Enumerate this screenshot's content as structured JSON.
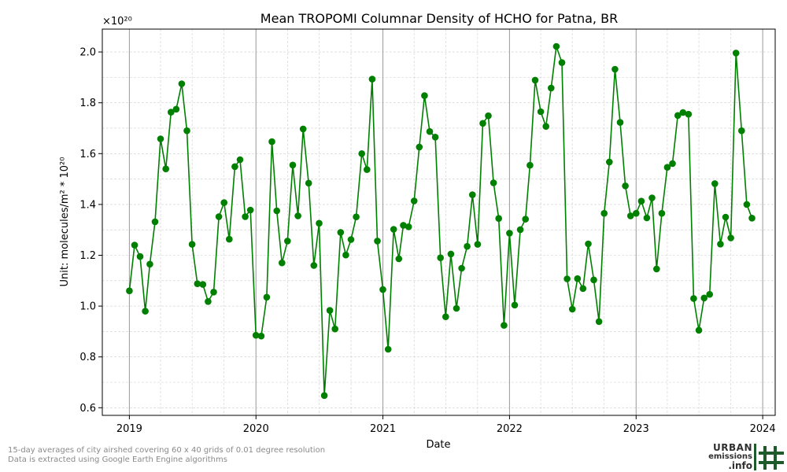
{
  "chart_data": {
    "type": "line",
    "title": "Mean TROPOMI Columnar Density of HCHO for Patna, BR",
    "xlabel": "Date",
    "ylabel": "Unit: molecules/m² * 10²⁰",
    "y_multiplier_label": "×10²⁰",
    "xlim": [
      "2018-10-15",
      "2024-02-06"
    ],
    "ylim": [
      0.57,
      2.09
    ],
    "x_ticks": [
      "2019",
      "2020",
      "2021",
      "2022",
      "2023",
      "2024"
    ],
    "y_ticks": [
      0.6,
      0.8,
      1.0,
      1.2,
      1.4,
      1.6,
      1.8,
      2.0
    ],
    "grid": true,
    "series_color": "#008000",
    "series": [
      {
        "x": [
          "2019-01-01",
          "2019-01-16",
          "2019-02-01",
          "2019-02-16",
          "2019-03-01",
          "2019-03-16",
          "2019-04-01",
          "2019-04-16",
          "2019-05-01",
          "2019-05-16",
          "2019-06-01",
          "2019-06-16",
          "2019-07-01",
          "2019-07-16",
          "2019-08-01",
          "2019-08-16",
          "2019-09-01",
          "2019-09-16",
          "2019-10-01",
          "2019-10-16",
          "2019-11-01",
          "2019-11-16",
          "2019-12-01",
          "2019-12-16",
          "2020-01-01",
          "2020-01-16",
          "2020-02-01",
          "2020-02-16",
          "2020-03-01",
          "2020-03-16",
          "2020-04-01",
          "2020-04-16",
          "2020-05-01",
          "2020-05-16",
          "2020-06-01",
          "2020-06-16",
          "2020-07-01",
          "2020-07-16",
          "2020-08-01",
          "2020-08-16",
          "2020-09-01",
          "2020-09-16",
          "2020-10-01",
          "2020-10-16",
          "2020-11-01",
          "2020-11-16",
          "2020-12-01",
          "2020-12-16",
          "2021-01-01",
          "2021-01-16",
          "2021-02-01",
          "2021-02-16",
          "2021-03-01",
          "2021-03-16",
          "2021-04-01",
          "2021-04-16",
          "2021-05-01",
          "2021-05-16",
          "2021-06-01",
          "2021-06-16",
          "2021-07-01",
          "2021-07-16",
          "2021-08-01",
          "2021-08-16",
          "2021-09-01",
          "2021-09-16",
          "2021-10-01",
          "2021-10-16",
          "2021-11-01",
          "2021-11-16",
          "2021-12-01",
          "2021-12-16",
          "2022-01-01",
          "2022-01-16",
          "2022-02-01",
          "2022-02-16",
          "2022-03-01",
          "2022-03-16",
          "2022-04-01",
          "2022-04-16",
          "2022-05-01",
          "2022-05-16",
          "2022-06-01",
          "2022-06-16",
          "2022-07-01",
          "2022-07-16",
          "2022-08-01",
          "2022-08-16",
          "2022-09-01",
          "2022-09-16",
          "2022-10-01",
          "2022-10-16",
          "2022-11-01",
          "2022-11-16",
          "2022-12-01",
          "2022-12-16",
          "2023-01-01",
          "2023-01-16",
          "2023-02-01",
          "2023-02-16",
          "2023-03-01",
          "2023-03-16",
          "2023-04-01",
          "2023-04-16",
          "2023-05-01",
          "2023-05-16",
          "2023-06-01",
          "2023-06-16",
          "2023-07-01",
          "2023-07-16",
          "2023-08-01",
          "2023-08-16",
          "2023-09-01",
          "2023-09-16",
          "2023-10-01",
          "2023-10-16",
          "2023-11-01",
          "2023-11-16",
          "2023-12-01"
        ],
        "y": [
          1.06,
          1.24,
          1.195,
          0.98,
          1.165,
          1.332,
          1.658,
          1.54,
          1.763,
          1.775,
          1.875,
          1.69,
          1.243,
          1.088,
          1.085,
          1.018,
          1.055,
          1.352,
          1.407,
          1.263,
          1.549,
          1.576,
          1.352,
          1.378,
          0.885,
          0.882,
          1.035,
          1.647,
          1.375,
          1.17,
          1.256,
          1.555,
          1.355,
          1.697,
          1.484,
          1.16,
          1.326,
          0.648,
          0.983,
          0.91,
          1.29,
          1.201,
          1.262,
          1.351,
          1.6,
          1.537,
          1.893,
          1.256,
          1.065,
          0.83,
          1.302,
          1.186,
          1.318,
          1.312,
          1.414,
          1.626,
          1.828,
          1.687,
          1.665,
          1.19,
          0.958,
          1.205,
          0.991,
          1.149,
          1.235,
          1.438,
          1.243,
          1.719,
          1.749,
          1.485,
          1.345,
          0.924,
          1.287,
          1.004,
          1.301,
          1.342,
          1.554,
          1.889,
          1.765,
          1.707,
          1.858,
          2.022,
          1.958,
          1.107,
          0.988,
          1.108,
          1.069,
          1.245,
          1.103,
          0.939,
          1.365,
          1.567,
          1.932,
          1.723,
          1.473,
          1.355,
          1.365,
          1.413,
          1.347,
          1.426,
          1.146,
          1.365,
          1.546,
          1.561,
          1.75,
          1.762,
          1.755,
          1.03,
          0.905,
          1.032,
          1.046,
          1.482,
          1.244,
          1.35,
          1.268,
          1.996,
          1.69,
          1.4,
          1.346
        ]
      }
    ]
  },
  "footnote": {
    "line1": "15-day averages of city airshed covering 60 x 40 grids of 0.01 degree resolution",
    "line2": "Data is extracted using Google Earth Engine algorithms"
  },
  "logo": {
    "line1": "URBAN",
    "line2": "emissions",
    "line3": ".info"
  }
}
